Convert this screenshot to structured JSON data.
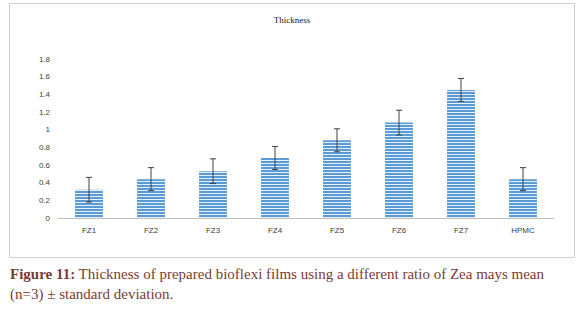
{
  "chart_data": {
    "type": "bar",
    "title": "Thickness",
    "categories": [
      "FZ1",
      "FZ2",
      "FZ3",
      "FZ4",
      "FZ5",
      "FZ6",
      "FZ7",
      "HPMC"
    ],
    "values": [
      0.32,
      0.44,
      0.53,
      0.68,
      0.88,
      1.08,
      1.45,
      0.44
    ],
    "errors": [
      0.14,
      0.13,
      0.14,
      0.13,
      0.13,
      0.14,
      0.13,
      0.13
    ],
    "color": "#5b9bd5",
    "ylim": [
      0,
      1.8
    ],
    "yticks": [
      0,
      0.2,
      0.4,
      0.6,
      0.8,
      1,
      1.2,
      1.4,
      1.6,
      1.8
    ],
    "grid": false,
    "caption": "Figure 11: Thickness of prepared bioflexi films using a different ratio of Zea mays mean (n=3) ± standard deviation."
  }
}
